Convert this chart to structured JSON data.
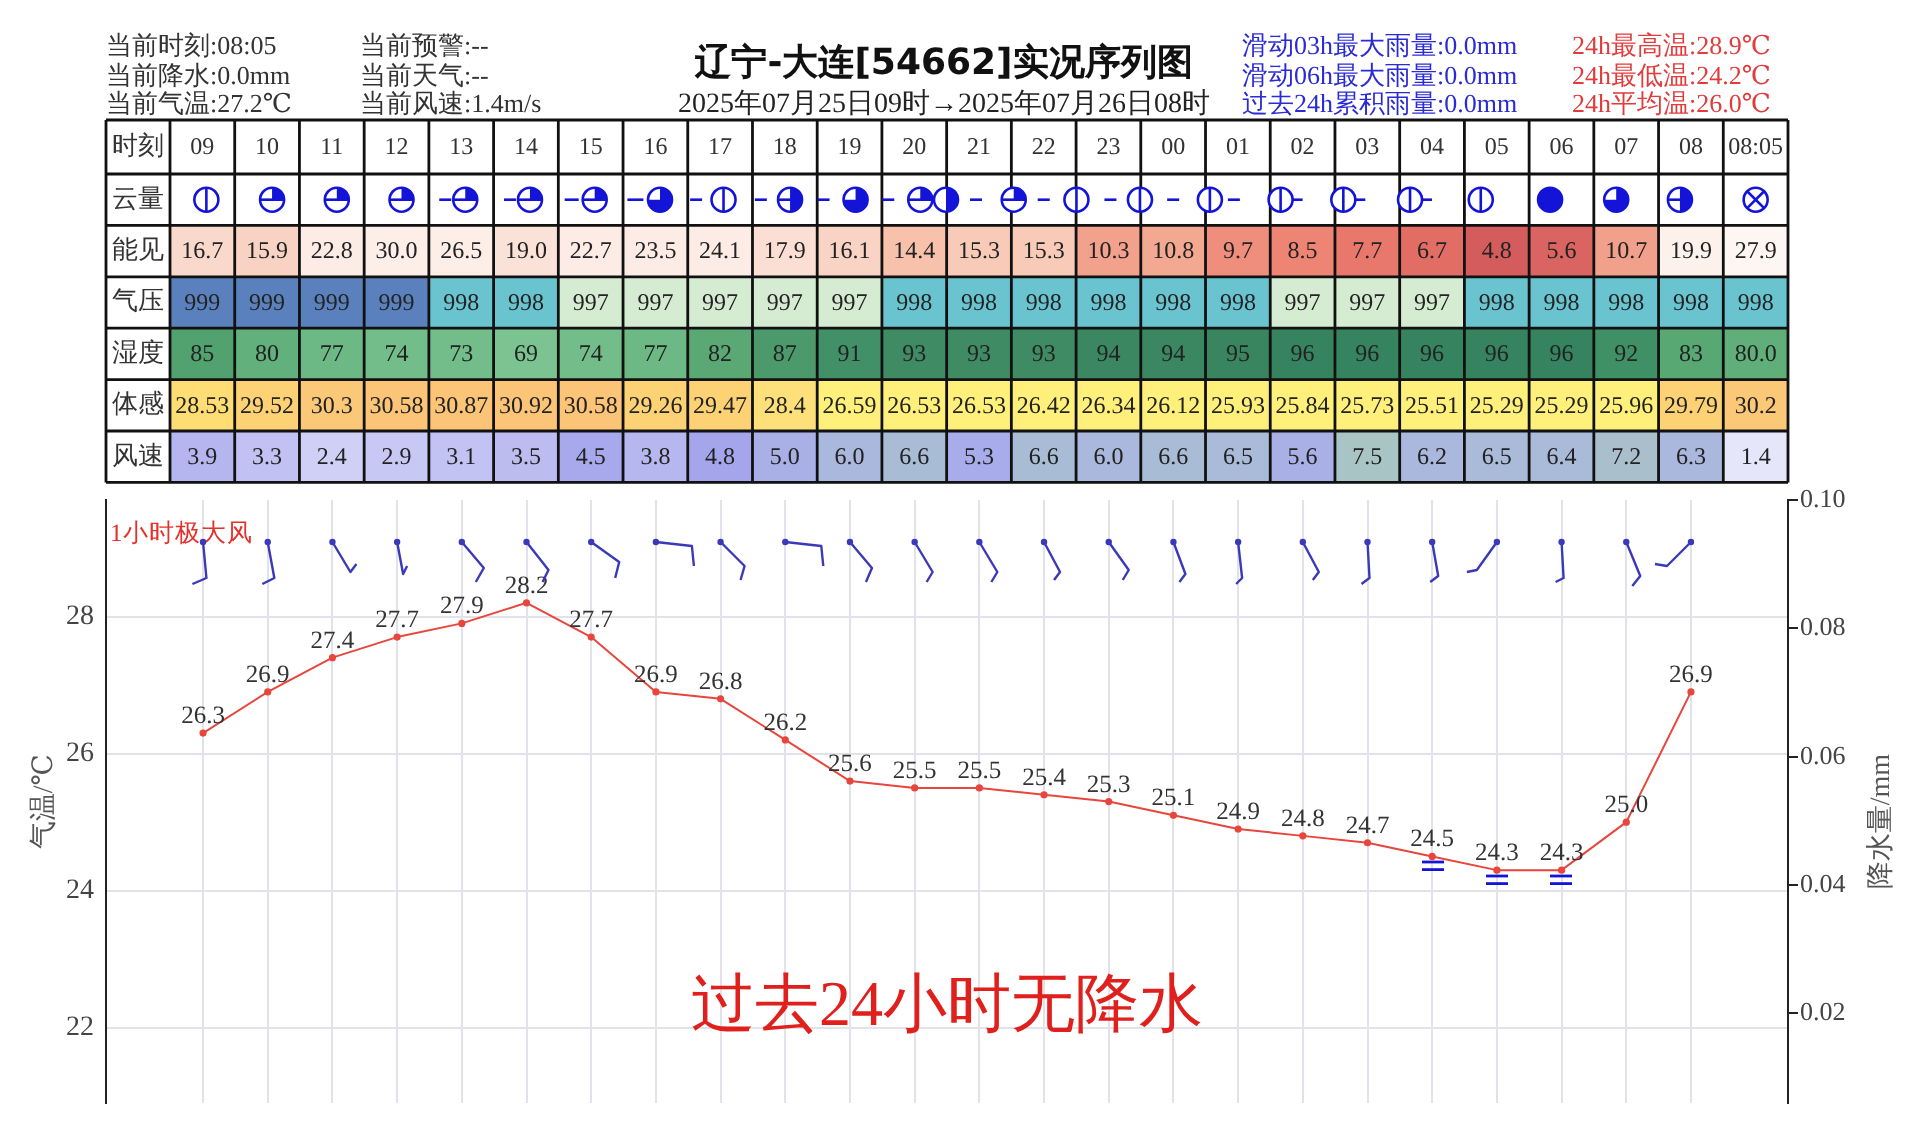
{
  "chart_data": [
    {
      "type": "heatmap",
      "title": "辽宁-大连[54662]实况序列图",
      "subtitle": "2025年07月25日09时→2025年07月26日08时",
      "xlabel": "时刻",
      "categories": [
        "09",
        "10",
        "11",
        "12",
        "13",
        "14",
        "15",
        "16",
        "17",
        "18",
        "19",
        "20",
        "21",
        "22",
        "23",
        "00",
        "01",
        "02",
        "03",
        "04",
        "05",
        "06",
        "07",
        "08",
        "08:05"
      ],
      "y_categories": [
        "云量",
        "能见",
        "气压",
        "湿度",
        "体感",
        "风速"
      ],
      "cells": [
        [
          null,
          null,
          null,
          null,
          null,
          null,
          null,
          null,
          null,
          null,
          null,
          null,
          null,
          null,
          null,
          null,
          null,
          null,
          null,
          null,
          null,
          null,
          null,
          null,
          null
        ],
        [
          16.7,
          15.9,
          22.8,
          30.0,
          26.5,
          19.0,
          22.7,
          23.5,
          24.1,
          17.9,
          16.1,
          14.4,
          15.3,
          15.3,
          10.3,
          10.8,
          9.7,
          8.5,
          7.7,
          6.7,
          4.8,
          5.6,
          10.7,
          19.9,
          27.9
        ],
        [
          999,
          999,
          999,
          999,
          998,
          998,
          997,
          997,
          997,
          997,
          997,
          998,
          998,
          998,
          998,
          998,
          998,
          997,
          997,
          997,
          998,
          998,
          998,
          998,
          998
        ],
        [
          85,
          80,
          77,
          74,
          73,
          69,
          74,
          77,
          82,
          87,
          91,
          93,
          93,
          93,
          94,
          94,
          95,
          96,
          96,
          96,
          96,
          96,
          92,
          83,
          80
        ],
        [
          28.53,
          29.52,
          30.3,
          30.58,
          30.87,
          30.92,
          30.58,
          29.26,
          29.47,
          28.4,
          26.59,
          26.53,
          26.53,
          26.42,
          26.34,
          26.12,
          25.93,
          25.84,
          25.73,
          25.51,
          25.29,
          25.29,
          25.96,
          29.79,
          30.2
        ],
        [
          3.9,
          3.3,
          2.4,
          2.9,
          3.1,
          3.5,
          4.5,
          3.8,
          4.8,
          5.0,
          6.0,
          6.6,
          5.3,
          6.6,
          6.0,
          6.6,
          6.5,
          5.6,
          7.5,
          6.2,
          6.5,
          6.4,
          7.2,
          6.3,
          1.4
        ]
      ],
      "cell_labels": [
        [
          null,
          null,
          null,
          null,
          null,
          null,
          null,
          null,
          null,
          null,
          null,
          null,
          null,
          null,
          null,
          null,
          null,
          null,
          null,
          null,
          null,
          null,
          null,
          null,
          null
        ],
        [
          "16.7",
          "15.9",
          "22.8",
          "30.0",
          "26.5",
          "19.0",
          "22.7",
          "23.5",
          "24.1",
          "17.9",
          "16.1",
          "14.4",
          "15.3",
          "15.3",
          "10.3",
          "10.8",
          "9.7",
          "8.5",
          "7.7",
          "6.7",
          "4.8",
          "5.6",
          "10.7",
          "19.9",
          "27.9"
        ],
        [
          "999",
          "999",
          "999",
          "999",
          "998",
          "998",
          "997",
          "997",
          "997",
          "997",
          "997",
          "998",
          "998",
          "998",
          "998",
          "998",
          "998",
          "997",
          "997",
          "997",
          "998",
          "998",
          "998",
          "998",
          "998"
        ],
        [
          "85",
          "80",
          "77",
          "74",
          "73",
          "69",
          "74",
          "77",
          "82",
          "87",
          "91",
          "93",
          "93",
          "93",
          "94",
          "94",
          "95",
          "96",
          "96",
          "96",
          "96",
          "96",
          "92",
          "83",
          "80.0"
        ],
        [
          "28.53",
          "29.52",
          "30.3",
          "30.58",
          "30.87",
          "30.92",
          "30.58",
          "29.26",
          "29.47",
          "28.4",
          "26.59",
          "26.53",
          "26.53",
          "26.42",
          "26.34",
          "26.12",
          "25.93",
          "25.84",
          "25.73",
          "25.51",
          "25.29",
          "25.29",
          "25.96",
          "29.79",
          "30.2"
        ],
        [
          "3.9",
          "3.3",
          "2.4",
          "2.9",
          "3.1",
          "3.5",
          "4.5",
          "3.8",
          "4.8",
          "5.0",
          "6.0",
          "6.6",
          "5.3",
          "6.6",
          "6.0",
          "6.6",
          "6.5",
          "5.6",
          "7.5",
          "6.2",
          "6.5",
          "6.4",
          "7.2",
          "6.3",
          "1.4"
        ]
      ],
      "colors": [
        [
          null,
          null,
          null,
          null,
          null,
          null,
          null,
          null,
          null,
          null,
          null,
          null,
          null,
          null,
          null,
          null,
          null,
          null,
          null,
          null,
          null,
          null,
          null,
          null,
          null
        ],
        [
          "#f9d9cc",
          "#f8d2c3",
          "#fdece6",
          "#fdeee8",
          "#fdeee8",
          "#fbe2d8",
          "#fdece6",
          "#fdece6",
          "#fdece6",
          "#fbdfd4",
          "#f9d3c4",
          "#f7c1ac",
          "#f8cab8",
          "#f8cab8",
          "#f2a28c",
          "#f3a892",
          "#ef8e7c",
          "#ed8474",
          "#e8776c",
          "#e16d65",
          "#d45c5c",
          "#d96461",
          "#f1a08c",
          "#fdf1ec",
          "#fdf6f3"
        ],
        [
          "#5a80bd",
          "#5a80bd",
          "#5a80bd",
          "#5a80bd",
          "#6ac4d0",
          "#6ac4d0",
          "#d6ecd2",
          "#d6ecd2",
          "#d6ecd2",
          "#d6ecd2",
          "#d6ecd2",
          "#6ac4d0",
          "#6ac4d0",
          "#6ac4d0",
          "#6ac4d0",
          "#6ac4d0",
          "#6ac4d0",
          "#d6ecd2",
          "#d6ecd2",
          "#d6ecd2",
          "#6ac4d0",
          "#6ac4d0",
          "#6ac4d0",
          "#6ac4d0",
          "#6ac4d0"
        ],
        [
          "#52a26f",
          "#62b07c",
          "#6cb985",
          "#72bd89",
          "#72bd89",
          "#7cc392",
          "#72bd89",
          "#6cb985",
          "#5aa975",
          "#4c9a6b",
          "#429067",
          "#3e8b64",
          "#3e8b64",
          "#3e8b64",
          "#3a8761",
          "#3a8761",
          "#388560",
          "#36835f",
          "#36835f",
          "#36835f",
          "#36835f",
          "#36835f",
          "#409066",
          "#58a874",
          "#60ae7a"
        ],
        [
          "#fedd74",
          "#fdd274",
          "#fbc878",
          "#fbc477",
          "#fbc477",
          "#fbc477",
          "#fbc477",
          "#fdd274",
          "#fdd274",
          "#fee07a",
          "#fff07c",
          "#fff07c",
          "#fff07c",
          "#fff07c",
          "#fff07c",
          "#fff07c",
          "#fff07c",
          "#fff07c",
          "#fff07c",
          "#fff07c",
          "#fff07c",
          "#fff07c",
          "#fff07c",
          "#fdd274",
          "#fbc878"
        ],
        [
          "#b5b5ef",
          "#c1c1f3",
          "#d0d0f6",
          "#c8c8f5",
          "#c3c3f3",
          "#bcbcf1",
          "#a8a8ec",
          "#b7b7f0",
          "#a5a5eb",
          "#a8b0e6",
          "#a9b8dc",
          "#a9bcd6",
          "#a8acea",
          "#a9bcd6",
          "#a9b8dc",
          "#a9bcd6",
          "#a9bbd8",
          "#a8b0e6",
          "#a9c4c4",
          "#a9b8dc",
          "#a9bbd8",
          "#a9bbd8",
          "#a9c0cc",
          "#a9b8dc",
          "#e6e6fa"
        ]
      ],
      "annotations": [
        "当前时刻:08:05",
        "当前降水:0.0mm",
        "当前气温:27.2℃",
        "当前预警:--",
        "当前天气:--",
        "当前风速:1.4m/s",
        "滑动03h最大雨量:0.0mm",
        "滑动06h最大雨量:0.0mm",
        "过去24h累积雨量:0.0mm",
        "24h最高温:28.9℃",
        "24h最低温:24.2℃",
        "24h平均温:26.0℃"
      ]
    },
    {
      "type": "line",
      "ylabel": "气温/℃",
      "y2label": "降水量/mm",
      "categories": [
        null,
        null,
        null,
        null,
        null,
        null,
        null,
        null,
        null,
        null,
        null,
        null,
        null,
        null,
        null,
        null,
        null,
        null,
        null,
        null,
        null,
        null,
        null,
        null
      ],
      "series": [
        {
          "color": "#e8463c",
          "values": [
            26.3,
            26.9,
            27.4,
            27.7,
            27.9,
            28.2,
            27.7,
            26.9,
            26.8,
            26.2,
            25.6,
            25.5,
            25.5,
            25.4,
            25.3,
            25.1,
            24.9,
            24.8,
            24.7,
            24.5,
            24.3,
            24.3,
            25.0,
            26.9
          ],
          "value_labels": [
            "26.3",
            "26.9",
            "27.4",
            "27.7",
            "27.9",
            "28.2",
            "27.7",
            "26.9",
            "26.8",
            "26.2",
            "25.6",
            "25.5",
            "25.5",
            "25.4",
            "25.3",
            "25.1",
            "24.9",
            "24.8",
            "24.7",
            "24.5",
            "24.3",
            "24.3",
            "25.0",
            "26.9"
          ]
        }
      ],
      "ylim": [
        20.9,
        29.7
      ],
      "yticks": [
        22,
        24,
        26,
        28
      ],
      "y2lim": [
        0.006,
        0.1
      ],
      "y2ticks": [
        0.02,
        0.04,
        0.06,
        0.08,
        {
          "value": 0.1,
          "label": "0.10"
        }
      ],
      "grid": true,
      "marker": "circle",
      "annotations": [
        "1小时极大风",
        "过去24小时无降水"
      ]
    }
  ]
}
